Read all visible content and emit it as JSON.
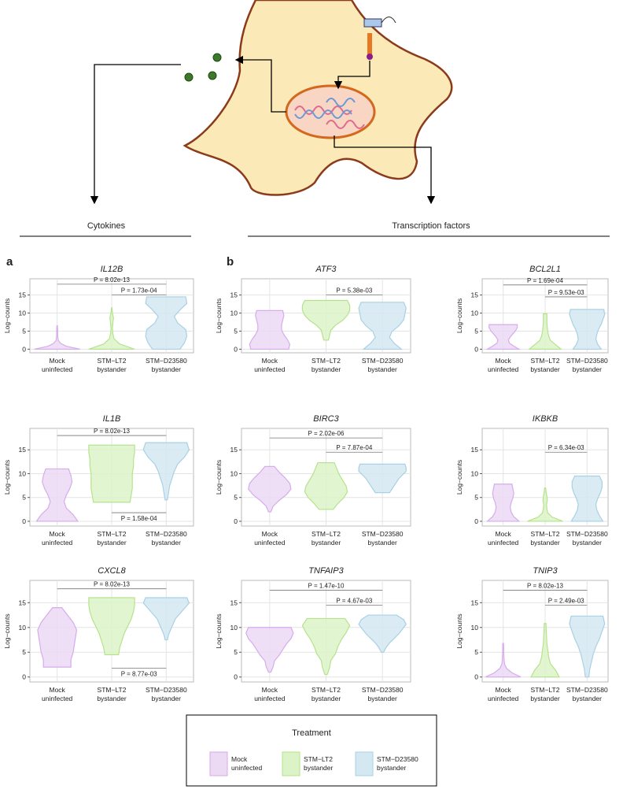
{
  "diagram": {
    "labels": [
      "Cytokines",
      "Transcription factors"
    ]
  },
  "panel_labels": [
    "a",
    "b"
  ],
  "chart_data": [
    {
      "type": "violin",
      "title": "IL12B",
      "ylabel": "Log−counts",
      "ylim": [
        -1,
        19.5
      ],
      "yticks": [
        0,
        5,
        10,
        15
      ],
      "grid": true,
      "categories": [
        [
          "Mock",
          "uninfected"
        ],
        [
          "STM−LT2",
          "bystander"
        ],
        [
          "STM−D23580",
          "bystander"
        ]
      ],
      "series": [
        {
          "color": "#ecd9f4",
          "edge": "#d6acea",
          "range": [
            0,
            6.5
          ],
          "density": [
            1,
            0.4,
            0.15,
            0.05,
            0.03,
            0.02,
            0.02,
            0.02,
            0.01
          ]
        },
        {
          "color": "#dcf3c8",
          "edge": "#b5e38c",
          "range": [
            0,
            11.5
          ],
          "density": [
            1,
            0.35,
            0.1,
            0.05,
            0.03,
            0.05,
            0.08,
            0.03,
            0.01
          ]
        },
        {
          "color": "#d3e8f1",
          "edge": "#a8d1e3",
          "range": [
            0,
            14.5
          ],
          "density": [
            0.6,
            0.8,
            0.9,
            0.85,
            0.5,
            0.35,
            0.6,
            0.9,
            0.85
          ]
        }
      ],
      "brackets": [
        {
          "groups": [
            0,
            2
          ],
          "y": 18,
          "label": "P = 8.02e-13"
        },
        {
          "groups": [
            1,
            2
          ],
          "y": 15,
          "label": "P = 1.73e-04"
        }
      ]
    },
    {
      "type": "violin",
      "title": "ATF3",
      "ylabel": "Log−counts",
      "ylim": [
        -1,
        19.5
      ],
      "yticks": [
        0,
        5,
        10,
        15
      ],
      "grid": true,
      "categories": [
        [
          "Mock",
          "uninfected"
        ],
        [
          "STM−LT2",
          "bystander"
        ],
        [
          "STM−D23580",
          "bystander"
        ]
      ],
      "series": [
        {
          "color": "#ecd9f4",
          "edge": "#d6acea",
          "range": [
            0,
            10.7
          ],
          "density": [
            0.8,
            0.85,
            0.75,
            0.6,
            0.5,
            0.5,
            0.55,
            0.6,
            0.55
          ]
        },
        {
          "color": "#dcf3c8",
          "edge": "#b5e38c",
          "range": [
            2.5,
            13.5
          ],
          "density": [
            0.1,
            0.15,
            0.2,
            0.4,
            0.7,
            0.9,
            1,
            1,
            0.9
          ]
        },
        {
          "color": "#d3e8f1",
          "edge": "#a8d1e3",
          "range": [
            0,
            13
          ],
          "density": [
            0.8,
            0.5,
            0.3,
            0.4,
            0.7,
            0.9,
            0.95,
            1,
            0.9
          ]
        }
      ],
      "brackets": [
        {
          "groups": [
            1,
            2
          ],
          "y": 15,
          "label": "P = 5.38e-03"
        }
      ]
    },
    {
      "type": "violin",
      "title": "BCL2L1",
      "ylabel": "Log−counts",
      "ylim": [
        -1,
        19.5
      ],
      "yticks": [
        0,
        5,
        10,
        15
      ],
      "grid": true,
      "categories": [
        [
          "Mock",
          "uninfected"
        ],
        [
          "STM−LT2",
          "bystander"
        ],
        [
          "STM−D23580",
          "bystander"
        ]
      ],
      "series": [
        {
          "color": "#ecd9f4",
          "edge": "#d6acea",
          "range": [
            0,
            6.8
          ],
          "density": [
            0.9,
            0.6,
            0.35,
            0.3,
            0.4,
            0.55,
            0.7,
            0.8,
            0.8
          ]
        },
        {
          "color": "#dcf3c8",
          "edge": "#b5e38c",
          "range": [
            0,
            9.8
          ],
          "density": [
            0.9,
            0.6,
            0.3,
            0.2,
            0.15,
            0.12,
            0.1,
            0.1,
            0.1
          ]
        },
        {
          "color": "#d3e8f1",
          "edge": "#a8d1e3",
          "range": [
            0,
            11
          ],
          "density": [
            0.8,
            0.6,
            0.5,
            0.55,
            0.65,
            0.8,
            0.9,
            1,
            0.95
          ]
        }
      ],
      "brackets": [
        {
          "groups": [
            0,
            2
          ],
          "y": 17.8,
          "label": "P = 1.69e-04"
        },
        {
          "groups": [
            1,
            2
          ],
          "y": 14.5,
          "label": "P = 9.53e-03"
        }
      ]
    },
    {
      "type": "violin",
      "title": "IL1B",
      "ylabel": "Log−counts",
      "ylim": [
        -1,
        19.5
      ],
      "yticks": [
        0,
        5,
        10,
        15
      ],
      "grid": true,
      "categories": [
        [
          "Mock",
          "uninfected"
        ],
        [
          "STM−LT2",
          "bystander"
        ],
        [
          "STM−D23580",
          "bystander"
        ]
      ],
      "series": [
        {
          "color": "#ecd9f4",
          "edge": "#d6acea",
          "range": [
            0,
            11
          ],
          "density": [
            0.9,
            0.7,
            0.4,
            0.3,
            0.4,
            0.55,
            0.65,
            0.6,
            0.5
          ]
        },
        {
          "color": "#dcf3c8",
          "edge": "#b5e38c",
          "range": [
            4,
            16
          ],
          "density": [
            0.8,
            0.85,
            0.9,
            0.9,
            0.9,
            0.95,
            0.95,
            1,
            1
          ]
        },
        {
          "color": "#d3e8f1",
          "edge": "#a8d1e3",
          "range": [
            4.5,
            16.5
          ],
          "density": [
            0.05,
            0.1,
            0.15,
            0.25,
            0.35,
            0.5,
            0.8,
            1,
            0.9
          ]
        }
      ],
      "brackets": [
        {
          "groups": [
            0,
            2
          ],
          "y": 18,
          "label": "P = 8.02e-13"
        },
        {
          "groups": [
            1,
            2
          ],
          "y": 1.8,
          "label": "P = 1.58e-04",
          "below": true
        }
      ]
    },
    {
      "type": "violin",
      "title": "BIRC3",
      "ylabel": "Log−counts",
      "ylim": [
        -1,
        19.5
      ],
      "yticks": [
        0,
        5,
        10,
        15
      ],
      "grid": true,
      "categories": [
        [
          "Mock",
          "uninfected"
        ],
        [
          "STM−LT2",
          "bystander"
        ],
        [
          "STM−D23580",
          "bystander"
        ]
      ],
      "series": [
        {
          "color": "#ecd9f4",
          "edge": "#d6acea",
          "range": [
            2,
            11.5
          ],
          "density": [
            0.05,
            0.15,
            0.4,
            0.7,
            0.9,
            0.85,
            0.65,
            0.4,
            0.2
          ]
        },
        {
          "color": "#dcf3c8",
          "edge": "#b5e38c",
          "range": [
            2.5,
            12.3
          ],
          "density": [
            0.3,
            0.5,
            0.75,
            0.9,
            0.85,
            0.7,
            0.55,
            0.45,
            0.35
          ]
        },
        {
          "color": "#d3e8f1",
          "edge": "#a8d1e3",
          "range": [
            6,
            12
          ],
          "density": [
            0.3,
            0.4,
            0.5,
            0.6,
            0.7,
            0.85,
            1,
            1,
            0.95
          ]
        }
      ],
      "brackets": [
        {
          "groups": [
            0,
            2
          ],
          "y": 17.5,
          "label": "P = 2.02e-06"
        },
        {
          "groups": [
            1,
            2
          ],
          "y": 14.5,
          "label": "P = 7.87e-04"
        }
      ]
    },
    {
      "type": "violin",
      "title": "IKBKB",
      "ylabel": "Log−counts",
      "ylim": [
        -1,
        19.5
      ],
      "yticks": [
        0,
        5,
        10,
        15
      ],
      "grid": true,
      "categories": [
        [
          "Mock",
          "uninfected"
        ],
        [
          "STM−LT2",
          "bystander"
        ],
        [
          "STM−D23580",
          "bystander"
        ]
      ],
      "series": [
        {
          "color": "#ecd9f4",
          "edge": "#d6acea",
          "range": [
            0,
            7.8
          ],
          "density": [
            0.9,
            0.6,
            0.45,
            0.4,
            0.45,
            0.55,
            0.6,
            0.55,
            0.5
          ]
        },
        {
          "color": "#dcf3c8",
          "edge": "#b5e38c",
          "range": [
            0,
            7
          ],
          "density": [
            1,
            0.4,
            0.15,
            0.1,
            0.08,
            0.12,
            0.1,
            0.05,
            0.03
          ]
        },
        {
          "color": "#d3e8f1",
          "edge": "#a8d1e3",
          "range": [
            0,
            9.5
          ],
          "density": [
            0.9,
            0.7,
            0.55,
            0.5,
            0.6,
            0.75,
            0.85,
            0.85,
            0.7
          ]
        }
      ],
      "brackets": [
        {
          "groups": [
            1,
            2
          ],
          "y": 14.5,
          "label": "P = 6.34e-03"
        }
      ]
    },
    {
      "type": "violin",
      "title": "CXCL8",
      "ylabel": "Log−counts",
      "ylim": [
        -1,
        19.5
      ],
      "yticks": [
        0,
        5,
        10,
        15
      ],
      "grid": true,
      "categories": [
        [
          "Mock",
          "uninfected"
        ],
        [
          "STM−LT2",
          "bystander"
        ],
        [
          "STM−D23580",
          "bystander"
        ]
      ],
      "series": [
        {
          "color": "#ecd9f4",
          "edge": "#d6acea",
          "range": [
            2,
            14
          ],
          "density": [
            0.6,
            0.6,
            0.7,
            0.75,
            0.8,
            0.85,
            0.7,
            0.45,
            0.2
          ]
        },
        {
          "color": "#dcf3c8",
          "edge": "#b5e38c",
          "range": [
            4.5,
            16
          ],
          "density": [
            0.3,
            0.35,
            0.45,
            0.55,
            0.7,
            0.85,
            0.95,
            1,
            1
          ]
        },
        {
          "color": "#d3e8f1",
          "edge": "#a8d1e3",
          "range": [
            7.5,
            16
          ],
          "density": [
            0.05,
            0.1,
            0.2,
            0.3,
            0.4,
            0.6,
            0.8,
            1,
            0.9
          ]
        }
      ],
      "brackets": [
        {
          "groups": [
            0,
            2
          ],
          "y": 17.8,
          "label": "P = 8.02e-13"
        },
        {
          "groups": [
            1,
            2
          ],
          "y": 1.8,
          "label": "P = 8.77e-03",
          "below": true
        }
      ]
    },
    {
      "type": "violin",
      "title": "TNFAIP3",
      "ylabel": "Log−counts",
      "ylim": [
        -1,
        19.5
      ],
      "yticks": [
        0,
        5,
        10,
        15
      ],
      "grid": true,
      "categories": [
        [
          "Mock",
          "uninfected"
        ],
        [
          "STM−LT2",
          "bystander"
        ],
        [
          "STM−D23580",
          "bystander"
        ]
      ],
      "series": [
        {
          "color": "#ecd9f4",
          "edge": "#d6acea",
          "range": [
            1,
            10
          ],
          "density": [
            0.05,
            0.15,
            0.2,
            0.4,
            0.55,
            0.7,
            0.9,
            1,
            0.9
          ]
        },
        {
          "color": "#dcf3c8",
          "edge": "#b5e38c",
          "range": [
            0.5,
            11.8
          ],
          "density": [
            0.05,
            0.15,
            0.2,
            0.4,
            0.5,
            0.65,
            0.85,
            1,
            0.8
          ]
        },
        {
          "color": "#d3e8f1",
          "edge": "#a8d1e3",
          "range": [
            5,
            12.5
          ],
          "density": [
            0.05,
            0.15,
            0.3,
            0.5,
            0.7,
            0.85,
            1,
            0.9,
            0.6
          ]
        }
      ],
      "brackets": [
        {
          "groups": [
            0,
            2
          ],
          "y": 17.5,
          "label": "P = 1.47e-10"
        },
        {
          "groups": [
            1,
            2
          ],
          "y": 14.5,
          "label": "P = 4.67e-03"
        }
      ]
    },
    {
      "type": "violin",
      "title": "TNIP3",
      "ylabel": "Log−counts",
      "ylim": [
        -1,
        19.5
      ],
      "yticks": [
        0,
        5,
        10,
        15
      ],
      "grid": true,
      "categories": [
        [
          "Mock",
          "uninfected"
        ],
        [
          "STM−LT2",
          "bystander"
        ],
        [
          "STM−D23580",
          "bystander"
        ]
      ],
      "series": [
        {
          "color": "#ecd9f4",
          "edge": "#d6acea",
          "range": [
            0,
            6.8
          ],
          "density": [
            1,
            0.5,
            0.2,
            0.08,
            0.05,
            0.04,
            0.03,
            0.03,
            0.02
          ]
        },
        {
          "color": "#dcf3c8",
          "edge": "#b5e38c",
          "range": [
            0,
            10.8
          ],
          "density": [
            0.8,
            0.6,
            0.3,
            0.2,
            0.15,
            0.1,
            0.08,
            0.06,
            0.05
          ]
        },
        {
          "color": "#d3e8f1",
          "edge": "#a8d1e3",
          "range": [
            0,
            12.3
          ],
          "density": [
            0.1,
            0.15,
            0.25,
            0.35,
            0.5,
            0.7,
            0.85,
            1,
            0.9
          ]
        }
      ],
      "brackets": [
        {
          "groups": [
            0,
            2
          ],
          "y": 17.5,
          "label": "P = 8.02e-13"
        },
        {
          "groups": [
            1,
            2
          ],
          "y": 14.5,
          "label": "P = 2.49e-03"
        }
      ]
    }
  ],
  "legend": {
    "title": "Treatment",
    "entries": [
      {
        "label": [
          "Mock",
          "uninfected"
        ],
        "color": "#ecd9f4",
        "edge": "#d6acea"
      },
      {
        "label": [
          "STM−LT2",
          "bystander"
        ],
        "color": "#dcf3c8",
        "edge": "#b5e38c"
      },
      {
        "label": [
          "STM−D23580",
          "bystander"
        ],
        "color": "#d3e8f1",
        "edge": "#a8d1e3"
      }
    ]
  }
}
